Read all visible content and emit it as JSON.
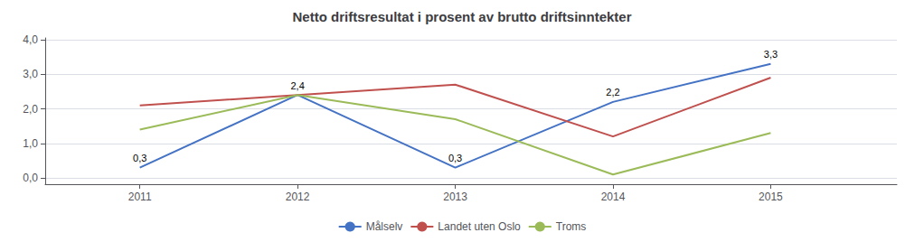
{
  "chart_data": {
    "type": "line",
    "title": "Netto driftsresultat i prosent av brutto driftsinntekter",
    "x": [
      2011,
      2012,
      2013,
      2014,
      2015
    ],
    "series": [
      {
        "name": "Målselv",
        "color": "#4472C4",
        "values": [
          0.3,
          2.4,
          0.3,
          2.2,
          3.3
        ]
      },
      {
        "name": "Landet uten Oslo",
        "color": "#C0504D",
        "values": [
          2.1,
          2.4,
          2.7,
          1.2,
          2.9
        ]
      },
      {
        "name": "Troms",
        "color": "#9BBB59",
        "values": [
          1.4,
          2.4,
          1.7,
          0.1,
          1.3
        ]
      }
    ],
    "annotations": [
      {
        "series": "Målselv",
        "x": 2011,
        "text": "0,3"
      },
      {
        "series": "Målselv",
        "x": 2013,
        "text": "0,3"
      },
      {
        "series": "Målselv",
        "x": 2014,
        "text": "2,2"
      },
      {
        "series": "Målselv",
        "x": 2015,
        "text": "3,3"
      },
      {
        "series": "Landet uten Oslo",
        "x": 2012,
        "text": "2,4"
      }
    ],
    "xlim": [
      2010.4,
      2015.8
    ],
    "xticks": [
      2011,
      2012,
      2013,
      2014,
      2015
    ],
    "ylim": [
      -0.18,
      4.05
    ],
    "yticks": [
      {
        "value": 0.0,
        "label": "0,0"
      },
      {
        "value": 1.0,
        "label": "1,0"
      },
      {
        "value": 2.0,
        "label": "2,0"
      },
      {
        "value": 3.0,
        "label": "3,0"
      },
      {
        "value": 4.0,
        "label": "4,0"
      }
    ],
    "grid": "y",
    "legend": "bottom"
  }
}
